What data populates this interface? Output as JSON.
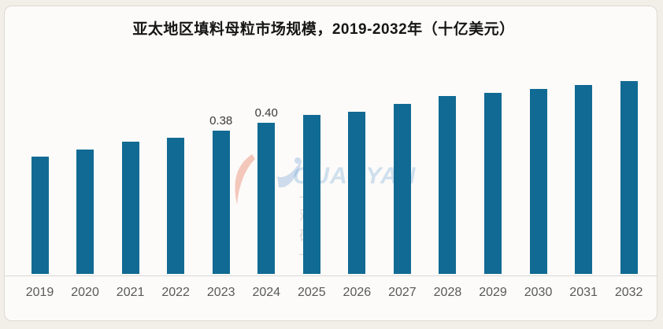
{
  "page": {
    "background_color": "#f2efe9"
  },
  "card": {
    "background_color": "#fcfbf9",
    "border_color": "#dcd9d3"
  },
  "chart_data": {
    "type": "bar",
    "title": "亚太地区填料母粒市场规模，2019-2032年（十亿美元）",
    "categories": [
      "2019",
      "2020",
      "2021",
      "2022",
      "2023",
      "2024",
      "2025",
      "2026",
      "2027",
      "2028",
      "2029",
      "2030",
      "2031",
      "2032"
    ],
    "values": [
      0.31,
      0.33,
      0.35,
      0.36,
      0.38,
      0.4,
      0.42,
      0.43,
      0.45,
      0.47,
      0.48,
      0.49,
      0.5,
      0.51
    ],
    "data_labels": [
      "",
      "",
      "",
      "",
      "0.38",
      "0.40",
      "",
      "",
      "",
      "",
      "",
      "",
      "",
      ""
    ],
    "xlabel": "",
    "ylabel": "",
    "ylim": [
      0,
      0.56
    ],
    "grid": false,
    "legend": false,
    "bar_color": "#116a93",
    "axis_line_color": "#d8d8d8",
    "tick_label_color": "#595959",
    "value_label_color": "#3a3a3a",
    "title_color": "#161616"
  },
  "watermark": {
    "latin_text": "GUANYAN",
    "cjk_text": "— 观 研 —",
    "latin_color": "#5a96d2",
    "swoosh_red_color": "#e4512e",
    "swoosh_blue_color": "#2a6fc0"
  }
}
